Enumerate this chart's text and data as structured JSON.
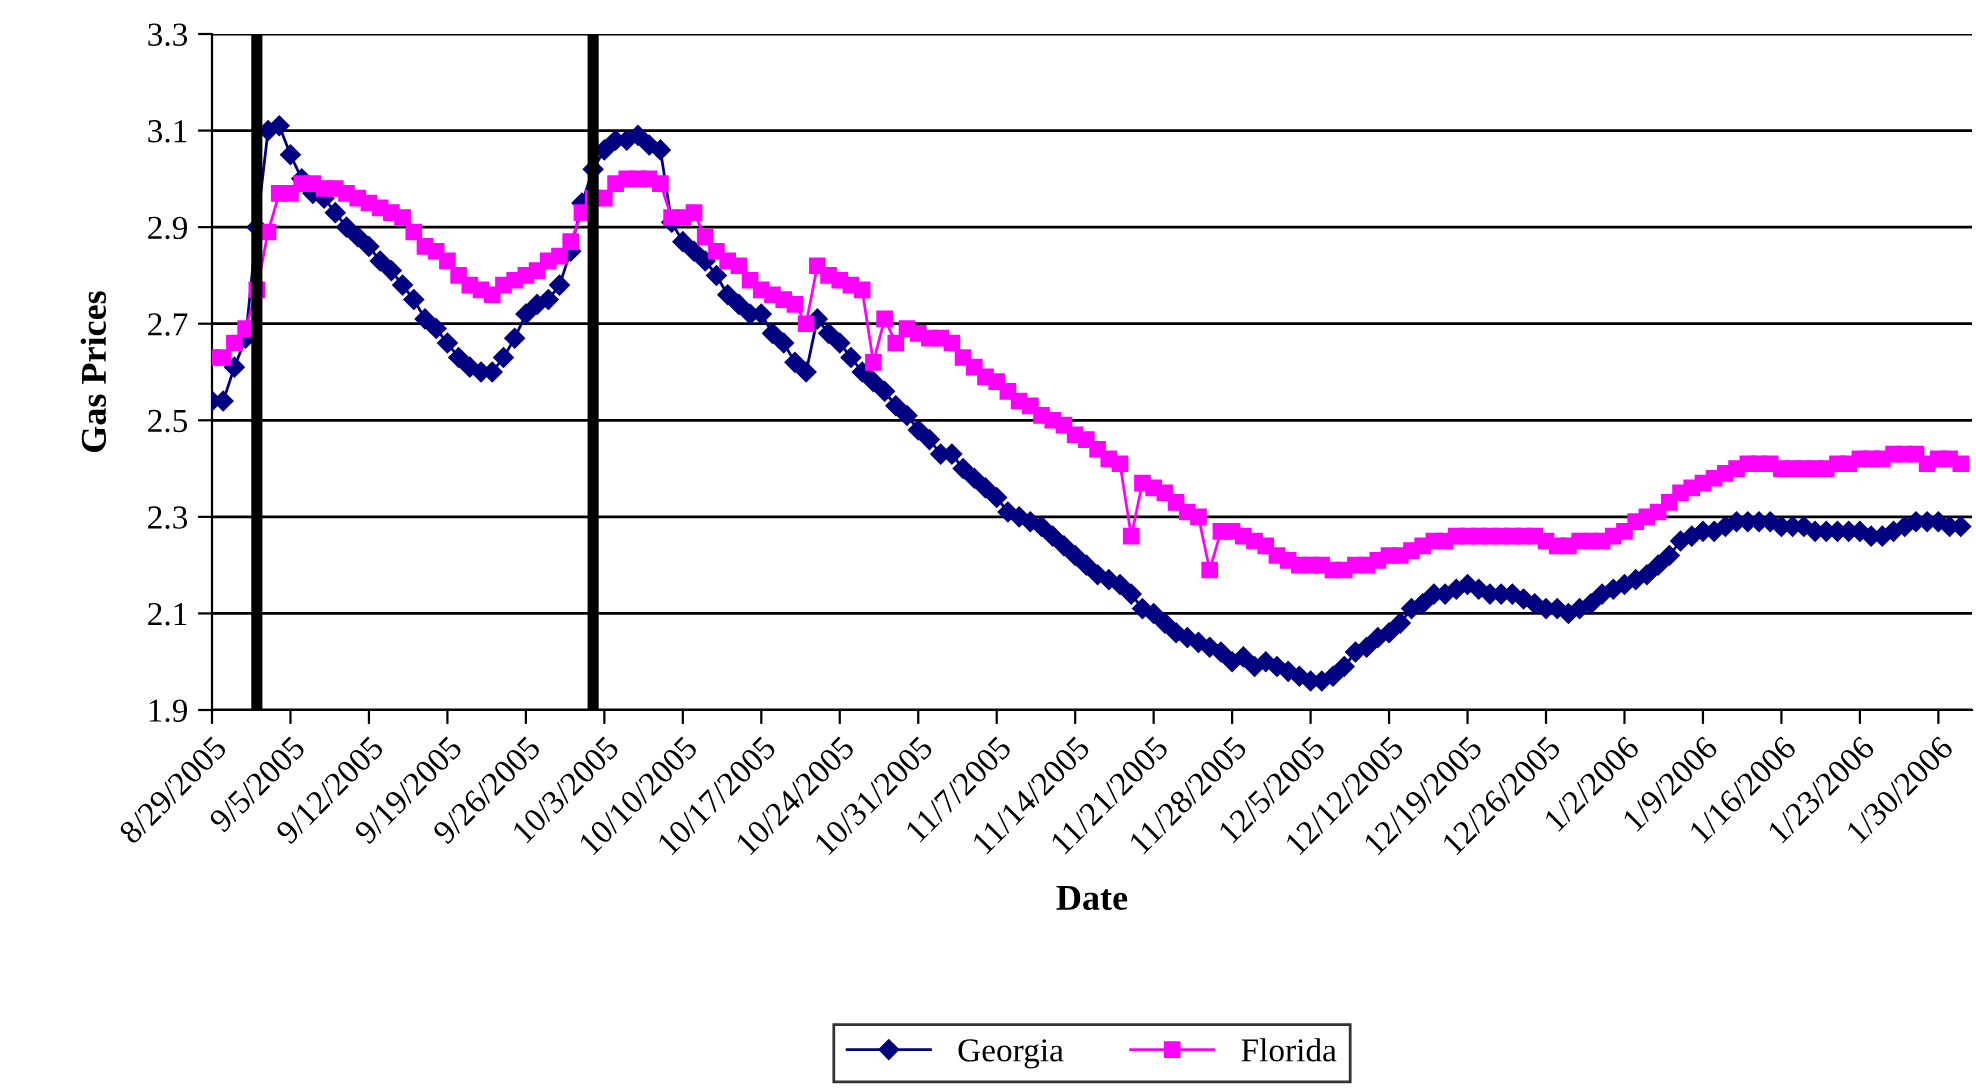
{
  "chart_data": {
    "type": "line",
    "xlabel": "Date",
    "ylabel": "Gas Prices",
    "x": [
      "2005-08-29",
      "2005-08-30",
      "2005-08-31",
      "2005-09-01",
      "2005-09-02",
      "2005-09-03",
      "2005-09-04",
      "2005-09-05",
      "2005-09-06",
      "2005-09-07",
      "2005-09-08",
      "2005-09-09",
      "2005-09-10",
      "2005-09-11",
      "2005-09-12",
      "2005-09-13",
      "2005-09-14",
      "2005-09-15",
      "2005-09-16",
      "2005-09-17",
      "2005-09-18",
      "2005-09-19",
      "2005-09-20",
      "2005-09-21",
      "2005-09-22",
      "2005-09-23",
      "2005-09-24",
      "2005-09-25",
      "2005-09-26",
      "2005-09-27",
      "2005-09-28",
      "2005-09-29",
      "2005-09-30",
      "2005-10-01",
      "2005-10-02",
      "2005-10-03",
      "2005-10-04",
      "2005-10-05",
      "2005-10-06",
      "2005-10-07",
      "2005-10-08",
      "2005-10-09",
      "2005-10-10",
      "2005-10-11",
      "2005-10-12",
      "2005-10-13",
      "2005-10-14",
      "2005-10-15",
      "2005-10-16",
      "2005-10-17",
      "2005-10-18",
      "2005-10-19",
      "2005-10-20",
      "2005-10-21",
      "2005-10-22",
      "2005-10-23",
      "2005-10-24",
      "2005-10-25",
      "2005-10-26",
      "2005-10-27",
      "2005-10-28",
      "2005-10-29",
      "2005-10-30",
      "2005-10-31",
      "2005-11-01",
      "2005-11-02",
      "2005-11-03",
      "2005-11-04",
      "2005-11-05",
      "2005-11-06",
      "2005-11-07",
      "2005-11-08",
      "2005-11-09",
      "2005-11-10",
      "2005-11-11",
      "2005-11-12",
      "2005-11-13",
      "2005-11-14",
      "2005-11-15",
      "2005-11-16",
      "2005-11-17",
      "2005-11-18",
      "2005-11-19",
      "2005-11-20",
      "2005-11-21",
      "2005-11-22",
      "2005-11-23",
      "2005-11-24",
      "2005-11-25",
      "2005-11-26",
      "2005-11-27",
      "2005-11-28",
      "2005-11-29",
      "2005-11-30",
      "2005-12-01",
      "2005-12-02",
      "2005-12-03",
      "2005-12-04",
      "2005-12-05",
      "2005-12-06",
      "2005-12-07",
      "2005-12-08",
      "2005-12-09",
      "2005-12-10",
      "2005-12-11",
      "2005-12-12",
      "2005-12-13",
      "2005-12-14",
      "2005-12-15",
      "2005-12-16",
      "2005-12-17",
      "2005-12-18",
      "2005-12-19",
      "2005-12-20",
      "2005-12-21",
      "2005-12-22",
      "2005-12-23",
      "2005-12-24",
      "2005-12-25",
      "2005-12-26",
      "2005-12-27",
      "2005-12-28",
      "2005-12-29",
      "2005-12-30",
      "2005-12-31",
      "2006-01-01",
      "2006-01-02",
      "2006-01-03",
      "2006-01-04",
      "2006-01-05",
      "2006-01-06",
      "2006-01-07",
      "2006-01-08",
      "2006-01-09",
      "2006-01-10",
      "2006-01-11",
      "2006-01-12",
      "2006-01-13",
      "2006-01-14",
      "2006-01-15",
      "2006-01-16",
      "2006-01-17",
      "2006-01-18",
      "2006-01-19",
      "2006-01-20",
      "2006-01-21",
      "2006-01-22",
      "2006-01-23",
      "2006-01-24",
      "2006-01-25",
      "2006-01-26",
      "2006-01-27",
      "2006-01-28",
      "2006-01-29",
      "2006-01-30",
      "2006-01-31",
      "2006-02-01"
    ],
    "series": [
      {
        "name": "Georgia",
        "color": "#000080",
        "marker": "diamond",
        "values": [
          2.54,
          2.54,
          2.61,
          2.67,
          2.9,
          3.1,
          3.11,
          3.05,
          3.0,
          2.97,
          2.96,
          2.93,
          2.9,
          2.88,
          2.86,
          2.83,
          2.81,
          2.78,
          2.75,
          2.71,
          2.69,
          2.66,
          2.63,
          2.61,
          2.6,
          2.6,
          2.63,
          2.67,
          2.72,
          2.74,
          2.75,
          2.78,
          2.85,
          2.95,
          3.02,
          3.06,
          3.08,
          3.08,
          3.09,
          3.07,
          3.06,
          2.91,
          2.87,
          2.85,
          2.83,
          2.8,
          2.76,
          2.74,
          2.72,
          2.72,
          2.68,
          2.66,
          2.62,
          2.6,
          2.71,
          2.68,
          2.66,
          2.63,
          2.6,
          2.58,
          2.56,
          2.53,
          2.51,
          2.48,
          2.46,
          2.43,
          2.43,
          2.4,
          2.38,
          2.36,
          2.34,
          2.31,
          2.3,
          2.29,
          2.28,
          2.26,
          2.24,
          2.22,
          2.2,
          2.18,
          2.17,
          2.16,
          2.14,
          2.11,
          2.1,
          2.08,
          2.06,
          2.05,
          2.04,
          2.03,
          2.02,
          2.0,
          2.01,
          1.99,
          2.0,
          1.99,
          1.98,
          1.97,
          1.96,
          1.96,
          1.97,
          1.99,
          2.02,
          2.03,
          2.05,
          2.06,
          2.08,
          2.11,
          2.12,
          2.14,
          2.14,
          2.15,
          2.16,
          2.15,
          2.14,
          2.14,
          2.14,
          2.13,
          2.12,
          2.11,
          2.11,
          2.1,
          2.11,
          2.12,
          2.14,
          2.15,
          2.16,
          2.17,
          2.18,
          2.2,
          2.22,
          2.25,
          2.26,
          2.27,
          2.27,
          2.28,
          2.29,
          2.29,
          2.29,
          2.29,
          2.28,
          2.28,
          2.28,
          2.27,
          2.27,
          2.27,
          2.27,
          2.27,
          2.26,
          2.26,
          2.27,
          2.28,
          2.29,
          2.29,
          2.29,
          2.28,
          2.28
        ]
      },
      {
        "name": "Florida",
        "color": "#ff00ff",
        "marker": "square",
        "values": [
          2.63,
          2.63,
          2.66,
          2.69,
          2.77,
          2.89,
          2.97,
          2.97,
          2.99,
          2.99,
          2.98,
          2.98,
          2.97,
          2.96,
          2.95,
          2.94,
          2.93,
          2.92,
          2.89,
          2.86,
          2.85,
          2.83,
          2.8,
          2.78,
          2.77,
          2.76,
          2.78,
          2.79,
          2.8,
          2.81,
          2.83,
          2.84,
          2.87,
          2.93,
          2.96,
          2.96,
          2.99,
          3.0,
          3.0,
          3.0,
          2.99,
          2.92,
          2.92,
          2.93,
          2.88,
          2.85,
          2.83,
          2.82,
          2.79,
          2.77,
          2.76,
          2.75,
          2.74,
          2.7,
          2.82,
          2.8,
          2.79,
          2.78,
          2.77,
          2.62,
          2.71,
          2.66,
          2.69,
          2.68,
          2.67,
          2.67,
          2.66,
          2.63,
          2.61,
          2.59,
          2.58,
          2.56,
          2.54,
          2.53,
          2.51,
          2.5,
          2.49,
          2.47,
          2.46,
          2.44,
          2.42,
          2.41,
          2.26,
          2.37,
          2.36,
          2.35,
          2.33,
          2.31,
          2.3,
          2.19,
          2.27,
          2.27,
          2.26,
          2.25,
          2.24,
          2.22,
          2.21,
          2.2,
          2.2,
          2.2,
          2.19,
          2.19,
          2.2,
          2.2,
          2.21,
          2.22,
          2.22,
          2.23,
          2.24,
          2.25,
          2.25,
          2.26,
          2.26,
          2.26,
          2.26,
          2.26,
          2.26,
          2.26,
          2.26,
          2.25,
          2.24,
          2.24,
          2.25,
          2.25,
          2.25,
          2.26,
          2.27,
          2.29,
          2.3,
          2.31,
          2.33,
          2.35,
          2.36,
          2.37,
          2.38,
          2.39,
          2.4,
          2.41,
          2.41,
          2.41,
          2.4,
          2.4,
          2.4,
          2.4,
          2.4,
          2.41,
          2.41,
          2.42,
          2.42,
          2.42,
          2.43,
          2.43,
          2.43,
          2.41,
          2.42,
          2.42,
          2.41
        ]
      }
    ],
    "xlim": [
      "2005-08-29",
      "2006-02-02"
    ],
    "xticks": [
      {
        "value": "2005-08-29",
        "label": "8/29/2005"
      },
      {
        "value": "2005-09-05",
        "label": "9/5/2005"
      },
      {
        "value": "2005-09-12",
        "label": "9/12/2005"
      },
      {
        "value": "2005-09-19",
        "label": "9/19/2005"
      },
      {
        "value": "2005-09-26",
        "label": "9/26/2005"
      },
      {
        "value": "2005-10-03",
        "label": "10/3/2005"
      },
      {
        "value": "2005-10-10",
        "label": "10/10/2005"
      },
      {
        "value": "2005-10-17",
        "label": "10/17/2005"
      },
      {
        "value": "2005-10-24",
        "label": "10/24/2005"
      },
      {
        "value": "2005-10-31",
        "label": "10/31/2005"
      },
      {
        "value": "2005-11-07",
        "label": "11/7/2005"
      },
      {
        "value": "2005-11-14",
        "label": "11/14/2005"
      },
      {
        "value": "2005-11-21",
        "label": "11/21/2005"
      },
      {
        "value": "2005-11-28",
        "label": "11/28/2005"
      },
      {
        "value": "2005-12-05",
        "label": "12/5/2005"
      },
      {
        "value": "2005-12-12",
        "label": "12/12/2005"
      },
      {
        "value": "2005-12-19",
        "label": "12/19/2005"
      },
      {
        "value": "2005-12-26",
        "label": "12/26/2005"
      },
      {
        "value": "2006-01-02",
        "label": "1/2/2006"
      },
      {
        "value": "2006-01-09",
        "label": "1/9/2006"
      },
      {
        "value": "2006-01-16",
        "label": "1/16/2006"
      },
      {
        "value": "2006-01-23",
        "label": "1/23/2006"
      },
      {
        "value": "2006-01-30",
        "label": "1/30/2006"
      }
    ],
    "ylim": [
      1.9,
      3.3
    ],
    "yticks": [
      1.9,
      2.1,
      2.3,
      2.5,
      2.7,
      2.9,
      3.1,
      3.3
    ],
    "ref_lines": [
      {
        "axis": "x",
        "value": "2005-09-02",
        "label": null,
        "color": "#000000"
      },
      {
        "axis": "x",
        "value": "2005-10-02",
        "label": null,
        "color": "#000000"
      }
    ],
    "grid": "y",
    "legend": "bottom",
    "line_style": "solid"
  }
}
